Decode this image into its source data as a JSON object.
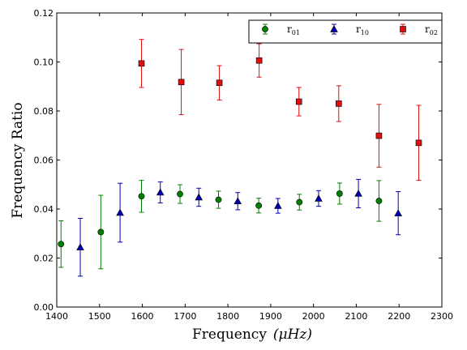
{
  "chart_data": {
    "type": "scatter",
    "xlabel_main": "Frequency",
    "xlabel_unit": "(μHz)",
    "ylabel": "Frequency Ratio",
    "xlim": [
      1400,
      2300
    ],
    "ylim": [
      0.0,
      0.12
    ],
    "xticks": [
      "1400",
      "1500",
      "1600",
      "1700",
      "1800",
      "1900",
      "2000",
      "2100",
      "2200",
      "2300"
    ],
    "yticks": [
      "0.00",
      "0.02",
      "0.04",
      "0.06",
      "0.08",
      "0.10",
      "0.12"
    ],
    "grid": false,
    "legend_position": "top-right",
    "series": [
      {
        "name_base": "r",
        "name_sub": "01",
        "color": "#008000",
        "marker": "circle",
        "points": [
          {
            "x": 1410,
            "y": 0.0257,
            "err": 0.0095
          },
          {
            "x": 1503,
            "y": 0.0306,
            "err": 0.015
          },
          {
            "x": 1598,
            "y": 0.0452,
            "err": 0.0065
          },
          {
            "x": 1688,
            "y": 0.0461,
            "err": 0.0038
          },
          {
            "x": 1778,
            "y": 0.0438,
            "err": 0.0035
          },
          {
            "x": 1872,
            "y": 0.0414,
            "err": 0.003
          },
          {
            "x": 1967,
            "y": 0.0428,
            "err": 0.0032
          },
          {
            "x": 2061,
            "y": 0.0463,
            "err": 0.0043
          },
          {
            "x": 2153,
            "y": 0.0433,
            "err": 0.0083
          }
        ]
      },
      {
        "name_base": "r",
        "name_sub": "10",
        "color": "#0000b0",
        "marker": "triangle",
        "points": [
          {
            "x": 1455,
            "y": 0.0244,
            "err": 0.0118
          },
          {
            "x": 1548,
            "y": 0.0385,
            "err": 0.012
          },
          {
            "x": 1642,
            "y": 0.0468,
            "err": 0.0043
          },
          {
            "x": 1732,
            "y": 0.0448,
            "err": 0.0037
          },
          {
            "x": 1823,
            "y": 0.0432,
            "err": 0.0035
          },
          {
            "x": 1917,
            "y": 0.0413,
            "err": 0.003
          },
          {
            "x": 2012,
            "y": 0.0443,
            "err": 0.0032
          },
          {
            "x": 2105,
            "y": 0.0463,
            "err": 0.0058
          },
          {
            "x": 2198,
            "y": 0.0383,
            "err": 0.0088
          }
        ]
      },
      {
        "name_base": "r",
        "name_sub": "02",
        "color": "#dd1010",
        "marker": "square",
        "points": [
          {
            "x": 1598,
            "y": 0.0994,
            "err": 0.0098
          },
          {
            "x": 1691,
            "y": 0.0918,
            "err": 0.0133
          },
          {
            "x": 1780,
            "y": 0.0915,
            "err": 0.007
          },
          {
            "x": 1873,
            "y": 0.1006,
            "err": 0.0068
          },
          {
            "x": 1966,
            "y": 0.0838,
            "err": 0.0058
          },
          {
            "x": 2059,
            "y": 0.083,
            "err": 0.0073
          },
          {
            "x": 2153,
            "y": 0.0699,
            "err": 0.0128
          },
          {
            "x": 2246,
            "y": 0.067,
            "err": 0.0153
          }
        ]
      }
    ]
  }
}
